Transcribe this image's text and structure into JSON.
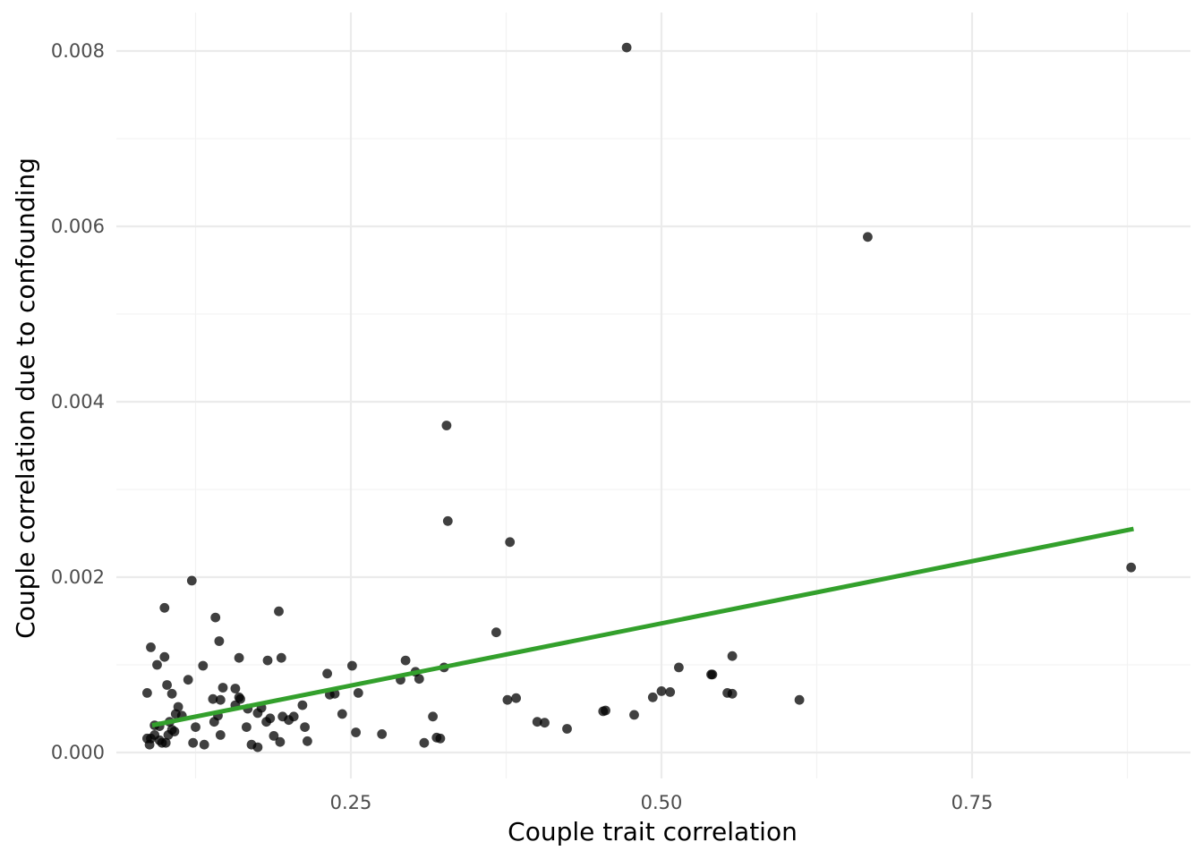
{
  "chart_data": {
    "type": "scatter",
    "title": "",
    "xlabel": "Couple trait correlation",
    "ylabel": "Couple correlation due to confounding",
    "xlim": [
      0.04,
      0.9
    ],
    "ylim": [
      -0.0003,
      0.0085
    ],
    "x_ticks": [
      0.25,
      0.5,
      0.75
    ],
    "x_tick_labels": [
      "0.25",
      "0.50",
      "0.75"
    ],
    "y_ticks": [
      0.0,
      0.002,
      0.004,
      0.006,
      0.008
    ],
    "y_tick_labels": [
      "0.000",
      "0.002",
      "0.004",
      "0.006",
      "0.008"
    ],
    "grid": true,
    "legend": "none",
    "colors": {
      "points": "#000000",
      "trend": "#33a02c"
    },
    "trend_line": {
      "x": [
        0.09,
        0.88
      ],
      "y": [
        0.00031,
        0.00255
      ]
    },
    "series": [
      {
        "x": [
          0.472,
          0.666,
          0.327,
          0.328,
          0.378,
          0.878,
          0.122,
          0.1,
          0.192,
          0.141,
          0.367,
          0.144,
          0.089,
          0.1,
          0.557,
          0.16,
          0.194,
          0.294,
          0.183,
          0.094,
          0.251,
          0.131,
          0.325,
          0.514,
          0.231,
          0.302,
          0.54,
          0.541,
          0.305,
          0.119,
          0.29,
          0.102,
          0.157,
          0.147,
          0.5,
          0.507,
          0.086,
          0.106,
          0.233,
          0.237,
          0.256,
          0.553,
          0.557,
          0.16,
          0.139,
          0.145,
          0.161,
          0.376,
          0.383,
          0.611,
          0.157,
          0.211,
          0.493,
          0.167,
          0.178,
          0.453,
          0.455,
          0.111,
          0.175,
          0.243,
          0.114,
          0.143,
          0.316,
          0.195,
          0.185,
          0.109,
          0.4,
          0.406,
          0.104,
          0.478,
          0.2,
          0.204,
          0.14,
          0.182,
          0.166,
          0.213,
          0.125,
          0.092,
          0.096,
          0.106,
          0.424,
          0.108,
          0.254,
          0.275,
          0.103,
          0.092,
          0.086,
          0.089,
          0.096,
          0.098,
          0.145,
          0.188,
          0.319,
          0.322,
          0.193,
          0.215,
          0.309,
          0.123,
          0.101,
          0.132,
          0.17,
          0.088,
          0.175
        ],
        "y": [
          0.00804,
          0.00588,
          0.00373,
          0.00264,
          0.0024,
          0.00211,
          0.00196,
          0.00165,
          0.00161,
          0.00154,
          0.00137,
          0.00127,
          0.0012,
          0.00109,
          0.0011,
          0.00108,
          0.00108,
          0.00105,
          0.00105,
          0.001,
          0.00099,
          0.00099,
          0.00097,
          0.00097,
          0.0009,
          0.00092,
          0.00089,
          0.00089,
          0.00084,
          0.00083,
          0.00083,
          0.00077,
          0.00073,
          0.00074,
          0.0007,
          0.00069,
          0.00068,
          0.00067,
          0.00066,
          0.00067,
          0.00068,
          0.00068,
          0.00067,
          0.00063,
          0.00061,
          0.0006,
          0.00061,
          0.0006,
          0.00062,
          0.0006,
          0.00054,
          0.00054,
          0.00063,
          0.0005,
          0.00051,
          0.00047,
          0.00048,
          0.00052,
          0.00045,
          0.00044,
          0.00042,
          0.00042,
          0.00041,
          0.00041,
          0.00039,
          0.00044,
          0.00035,
          0.00034,
          0.00035,
          0.00043,
          0.00037,
          0.00041,
          0.00035,
          0.00035,
          0.00029,
          0.00029,
          0.00029,
          0.00031,
          0.0003,
          0.00026,
          0.00027,
          0.00024,
          0.00023,
          0.00021,
          0.0002,
          0.0002,
          0.00016,
          0.00016,
          0.00014,
          0.00011,
          0.0002,
          0.00019,
          0.00017,
          0.00016,
          0.00012,
          0.00013,
          0.00011,
          0.00011,
          0.00011,
          9e-05,
          9e-05,
          9e-05,
          6e-05
        ]
      }
    ]
  }
}
